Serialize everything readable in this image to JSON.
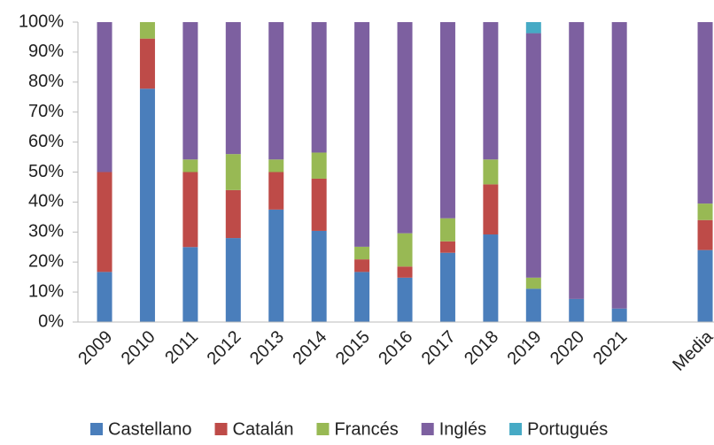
{
  "chart_data": {
    "type": "stacked_bar_percent",
    "categories": [
      "2009",
      "2010",
      "2011",
      "2012",
      "2013",
      "2014",
      "2015",
      "2016",
      "2017",
      "2018",
      "2019",
      "2020",
      "2021",
      null,
      "Media"
    ],
    "series": [
      {
        "name": "Castellano",
        "color": "#4a7ebb",
        "values": [
          16.7,
          77.8,
          25,
          28,
          37.5,
          30.4,
          16.7,
          14.8,
          23.1,
          29.2,
          11.1,
          7.7,
          4.5,
          null,
          24
        ]
      },
      {
        "name": "Catalán",
        "color": "#be4b48",
        "values": [
          33.3,
          16.7,
          25,
          16,
          12.5,
          17.4,
          4.2,
          3.7,
          3.8,
          16.7,
          0,
          0,
          0,
          null,
          10
        ]
      },
      {
        "name": "Francés",
        "color": "#98b954",
        "values": [
          0,
          5.5,
          4.2,
          12,
          4.2,
          8.7,
          4.2,
          11.1,
          7.7,
          8.3,
          3.7,
          0,
          0,
          null,
          5.5
        ]
      },
      {
        "name": "Inglés",
        "color": "#7d60a0",
        "values": [
          50,
          0,
          45.8,
          44,
          45.8,
          43.5,
          74.9,
          70.4,
          65.4,
          45.8,
          81.5,
          92.3,
          95.5,
          null,
          60.5
        ]
      },
      {
        "name": "Portugués",
        "color": "#46aac5",
        "values": [
          0,
          0,
          0,
          0,
          0,
          0,
          0,
          0,
          0,
          0,
          3.7,
          0,
          0,
          null,
          0
        ]
      }
    ],
    "ylim": [
      0,
      100
    ],
    "yticks": [
      {
        "value": 0,
        "label": "0%"
      },
      {
        "value": 10,
        "label": "10%"
      },
      {
        "value": 20,
        "label": "20%"
      },
      {
        "value": 30,
        "label": "30%"
      },
      {
        "value": 40,
        "label": "40%"
      },
      {
        "value": 50,
        "label": "50%"
      },
      {
        "value": 60,
        "label": "60%"
      },
      {
        "value": 70,
        "label": "70%"
      },
      {
        "value": 80,
        "label": "80%"
      },
      {
        "value": 90,
        "label": "90%"
      },
      {
        "value": 100,
        "label": "100%"
      }
    ],
    "grid": false,
    "legend": "bottom"
  }
}
